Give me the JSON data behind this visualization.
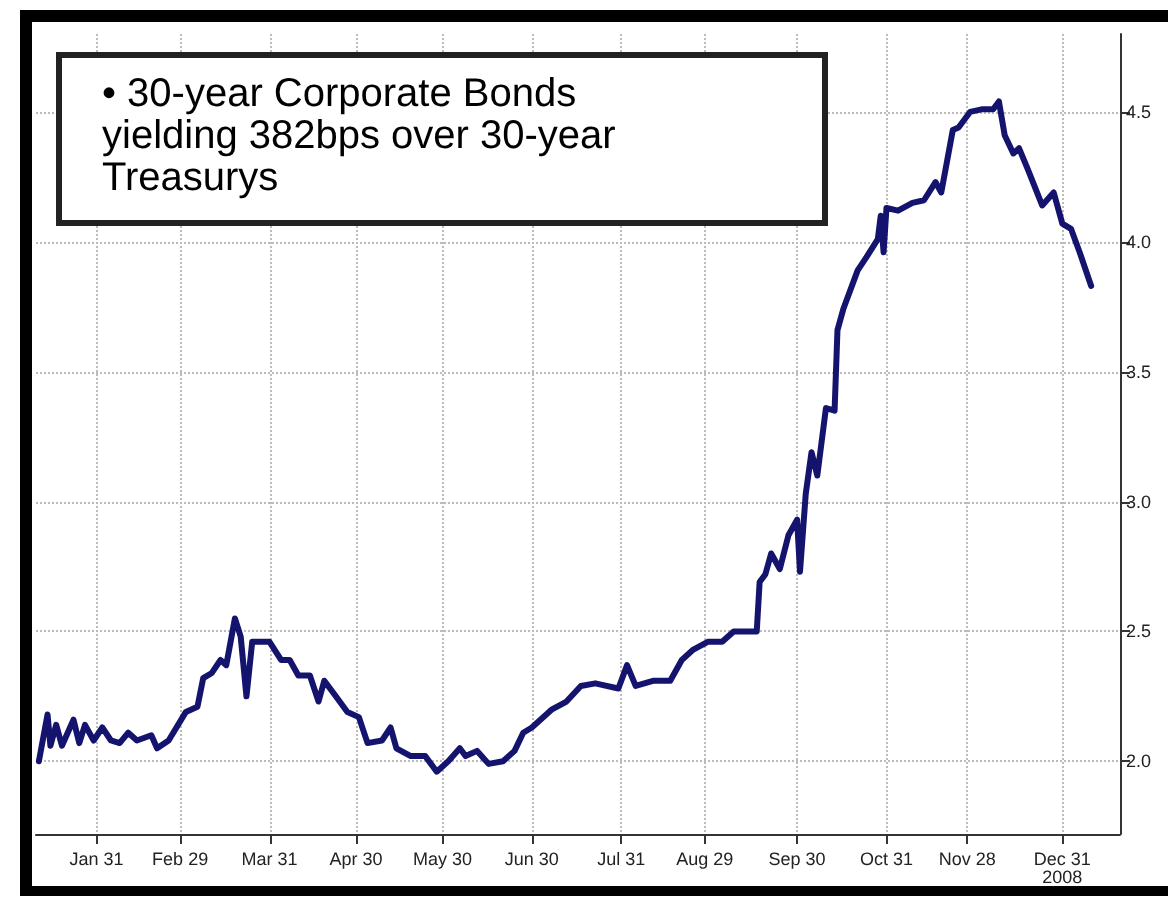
{
  "chart_data": {
    "type": "line",
    "annotations": [
      "• 30-year Corporate Bonds yielding 382bps over 30-year Treasurys"
    ],
    "x": [
      "2008-01-11",
      "2008-01-14",
      "2008-01-15",
      "2008-01-17",
      "2008-01-19",
      "2008-01-23",
      "2008-01-25",
      "2008-01-27",
      "2008-01-30",
      "2008-02-02",
      "2008-02-05",
      "2008-02-08",
      "2008-02-11",
      "2008-02-14",
      "2008-02-19",
      "2008-02-21",
      "2008-02-25",
      "2008-03-02",
      "2008-03-06",
      "2008-03-08",
      "2008-03-11",
      "2008-03-14",
      "2008-03-16",
      "2008-03-19",
      "2008-03-21",
      "2008-03-23",
      "2008-03-25",
      "2008-03-31",
      "2008-04-04",
      "2008-04-07",
      "2008-04-10",
      "2008-04-14",
      "2008-04-17",
      "2008-04-19",
      "2008-04-23",
      "2008-04-27",
      "2008-05-01",
      "2008-05-04",
      "2008-05-09",
      "2008-05-12",
      "2008-05-14",
      "2008-05-19",
      "2008-05-24",
      "2008-05-28",
      "2008-06-01",
      "2008-06-05",
      "2008-06-07",
      "2008-06-11",
      "2008-06-15",
      "2008-06-20",
      "2008-06-24",
      "2008-06-27",
      "2008-06-30",
      "2008-07-07",
      "2008-07-12",
      "2008-07-17",
      "2008-07-22",
      "2008-07-30",
      "2008-08-02",
      "2008-08-05",
      "2008-08-11",
      "2008-08-17",
      "2008-08-21",
      "2008-08-25",
      "2008-08-30",
      "2008-09-04",
      "2008-09-08",
      "2008-09-16",
      "2008-09-17",
      "2008-09-19",
      "2008-09-21",
      "2008-09-24",
      "2008-09-27",
      "2008-09-30",
      "2008-10-01",
      "2008-10-03",
      "2008-10-05",
      "2008-10-07",
      "2008-10-10",
      "2008-10-13",
      "2008-10-14",
      "2008-10-16",
      "2008-10-21",
      "2008-10-24",
      "2008-10-28",
      "2008-10-29",
      "2008-10-30",
      "2008-10-31",
      "2008-11-04",
      "2008-11-09",
      "2008-11-13",
      "2008-11-17",
      "2008-11-19",
      "2008-11-23",
      "2008-11-25",
      "2008-11-29",
      "2008-12-03",
      "2008-12-07",
      "2008-12-09",
      "2008-12-11",
      "2008-12-14",
      "2008-12-16",
      "2008-12-19",
      "2008-12-24",
      "2008-12-28",
      "2008-12-31",
      "2009-01-03",
      "2009-01-06",
      "2009-01-10"
    ],
    "series": [
      {
        "color": "#14146e",
        "values": [
          2.0,
          2.18,
          2.06,
          2.14,
          2.06,
          2.16,
          2.07,
          2.14,
          2.08,
          2.13,
          2.08,
          2.07,
          2.11,
          2.08,
          2.1,
          2.05,
          2.08,
          2.19,
          2.21,
          2.32,
          2.34,
          2.39,
          2.37,
          2.55,
          2.48,
          2.25,
          2.46,
          2.46,
          2.39,
          2.39,
          2.33,
          2.33,
          2.23,
          2.31,
          2.25,
          2.19,
          2.17,
          2.07,
          2.08,
          2.13,
          2.05,
          2.02,
          2.02,
          1.96,
          2.0,
          2.05,
          2.02,
          2.04,
          1.99,
          2.0,
          2.04,
          2.11,
          2.13,
          2.2,
          2.23,
          2.29,
          2.3,
          2.28,
          2.37,
          2.29,
          2.31,
          2.31,
          2.39,
          2.43,
          2.46,
          2.46,
          2.5,
          2.5,
          2.69,
          2.72,
          2.8,
          2.74,
          2.87,
          2.93,
          2.73,
          3.03,
          3.19,
          3.1,
          3.36,
          3.35,
          3.66,
          3.74,
          3.89,
          3.94,
          4.01,
          4.1,
          3.96,
          4.13,
          4.12,
          4.15,
          4.16,
          4.23,
          4.19,
          4.43,
          4.44,
          4.5,
          4.51,
          4.51,
          4.54,
          4.41,
          4.34,
          4.36,
          4.28,
          4.14,
          4.19,
          4.07,
          4.05,
          3.96,
          3.83
        ]
      }
    ],
    "xlim": [
      "2008-01-10",
      "2009-01-20"
    ],
    "xticks": [
      {
        "value": "2008-01-31",
        "label": "Jan 31"
      },
      {
        "value": "2008-02-29",
        "label": "Feb 29"
      },
      {
        "value": "2008-03-31",
        "label": "Mar 31"
      },
      {
        "value": "2008-04-30",
        "label": "Apr 30"
      },
      {
        "value": "2008-05-30",
        "label": "May 30"
      },
      {
        "value": "2008-06-30",
        "label": "Jun 30"
      },
      {
        "value": "2008-07-31",
        "label": "Jul 31"
      },
      {
        "value": "2008-08-29",
        "label": "Aug 29"
      },
      {
        "value": "2008-09-30",
        "label": "Sep 30"
      },
      {
        "value": "2008-10-31",
        "label": "Oct 31"
      },
      {
        "value": "2008-11-28",
        "label": "Nov 28"
      },
      {
        "value": "2008-12-31",
        "label": "Dec 31\n2008"
      }
    ],
    "ylim": [
      1.72,
      4.8
    ],
    "yticks": [
      {
        "value": 2,
        "label": "2.0"
      },
      {
        "value": 2.5,
        "label": "2.5"
      },
      {
        "value": 3,
        "label": "3.0"
      },
      {
        "value": 3.5,
        "label": "3.5"
      },
      {
        "value": 4,
        "label": "4.0"
      },
      {
        "value": 4.5,
        "label": "4.5"
      }
    ],
    "grid": true,
    "marker": "none",
    "line_style": "solid"
  }
}
